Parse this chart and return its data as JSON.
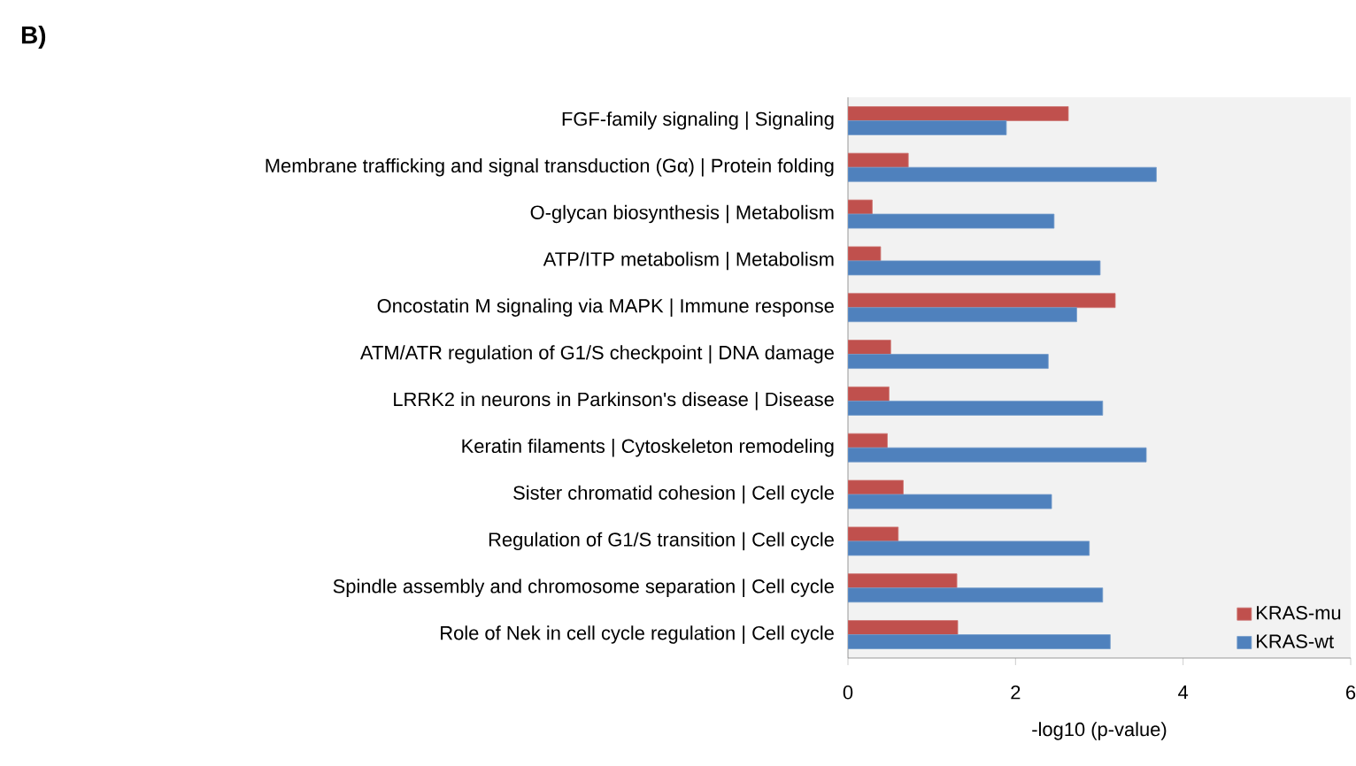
{
  "chart_data": {
    "type": "bar",
    "orientation": "horizontal",
    "title": "B)",
    "xlabel": "-log10 (p-value)",
    "categories": [
      "FGF-family signaling | Signaling",
      "Membrane trafficking and signal transduction (Gα) | Protein folding",
      "O-glycan biosynthesis | Metabolism",
      "ATP/ITP metabolism | Metabolism",
      "Oncostatin M signaling via MAPK | Immune response",
      "ATM/ATR regulation of G1/S checkpoint | DNA damage",
      "LRRK2 in neurons in Parkinson's disease | Disease",
      "Keratin filaments | Cytoskeleton remodeling",
      "Sister chromatid cohesion | Cell cycle",
      "Regulation of G1/S transition | Cell cycle",
      "Spindle assembly and chromosome separation | Cell cycle",
      "Role of Nek in cell cycle regulation | Cell cycle"
    ],
    "series": [
      {
        "name": "KRAS-mu",
        "color": "#c0504d",
        "values": [
          2.63,
          0.72,
          0.29,
          0.39,
          3.19,
          0.51,
          0.49,
          0.47,
          0.66,
          0.6,
          1.3,
          1.31
        ]
      },
      {
        "name": "KRAS-wt",
        "color": "#4f81bd",
        "values": [
          1.89,
          3.68,
          2.46,
          3.01,
          2.73,
          2.39,
          3.04,
          3.56,
          2.43,
          2.88,
          3.04,
          3.13
        ]
      }
    ],
    "xlim": [
      0,
      6
    ],
    "xticks": [
      0,
      2,
      4,
      6
    ],
    "legend": "bottom right",
    "grid": false
  }
}
